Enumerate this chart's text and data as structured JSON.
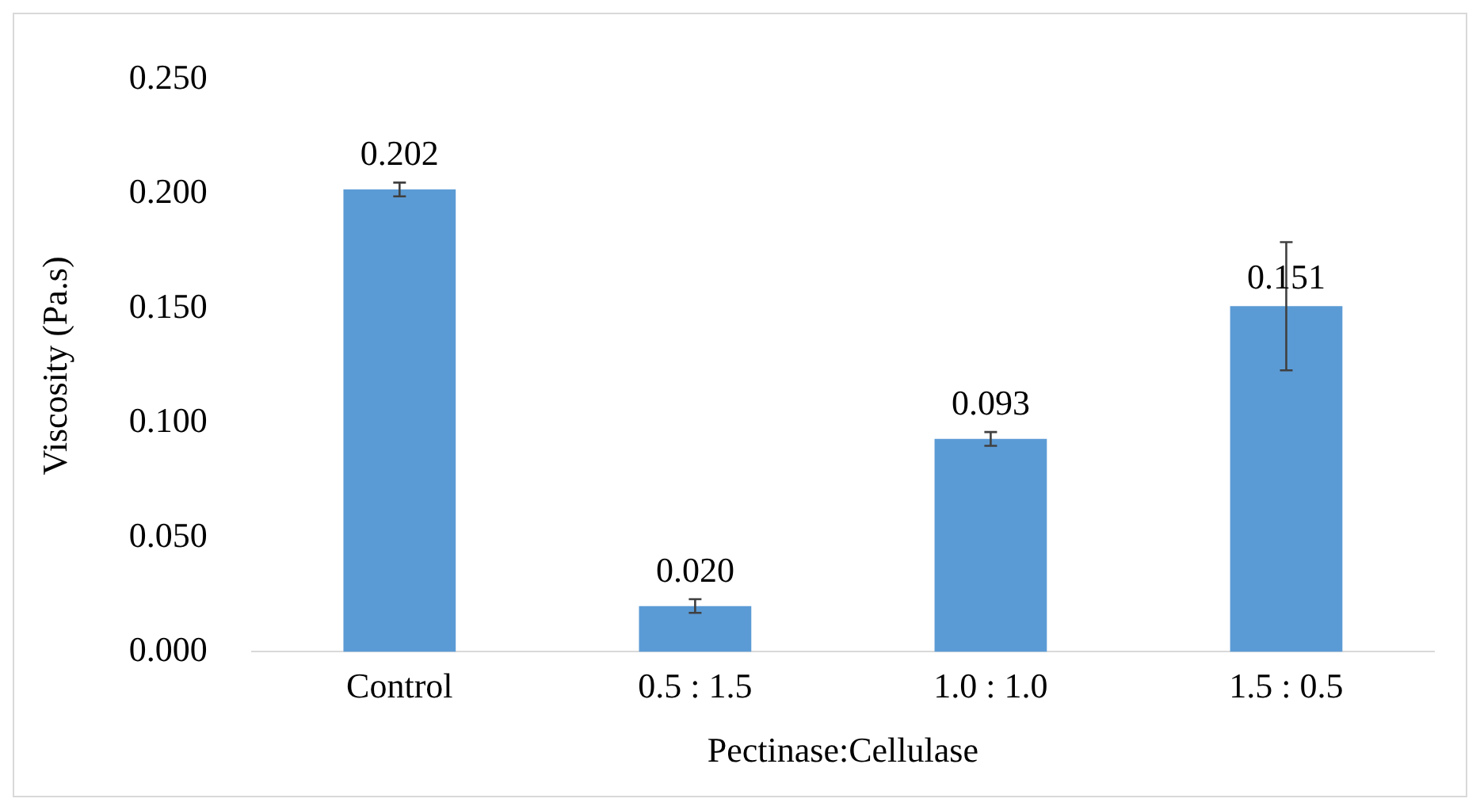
{
  "chart_data": {
    "type": "bar",
    "xlabel": "Pectinase:Cellulase",
    "ylabel": "Viscosity (Pa.s)",
    "categories": [
      "Control",
      "0.5 : 1.5",
      "1.0 : 1.0",
      "1.5 : 0.5"
    ],
    "values": [
      0.202,
      0.02,
      0.093,
      0.151
    ],
    "errors": [
      0.003,
      0.003,
      0.003,
      0.028
    ],
    "value_labels": [
      "0.202",
      "0.020",
      "0.093",
      "0.151"
    ],
    "color": "#5b9bd5",
    "ylim": [
      0,
      0.25
    ],
    "yticks": [
      {
        "value": 0,
        "label": "0.000"
      },
      {
        "value": 0.05,
        "label": "0.050"
      },
      {
        "value": 0.1,
        "label": "0.100"
      },
      {
        "value": 0.15,
        "label": "0.150"
      },
      {
        "value": 0.2,
        "label": "0.200"
      },
      {
        "value": 0.25,
        "label": "0.250"
      }
    ],
    "grid": false,
    "legend": false
  }
}
